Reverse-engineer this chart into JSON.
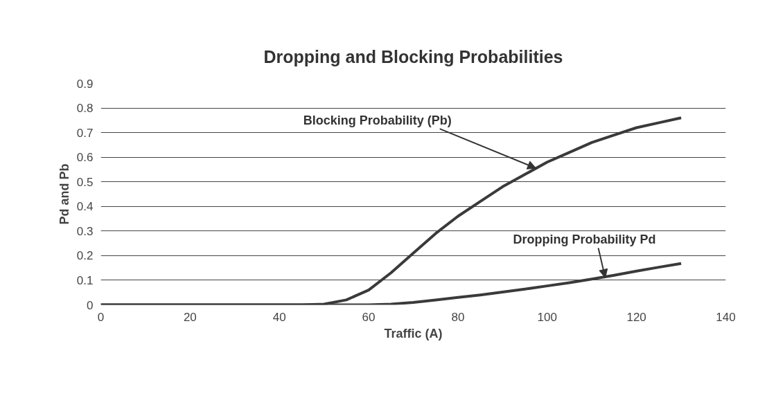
{
  "chart_data": {
    "type": "line",
    "title": "Dropping and Blocking Probabilities",
    "xlabel": "Traffic (A)",
    "ylabel": "Pd and Pb",
    "series": [
      {
        "name": null,
        "color": "#3a3a3a",
        "x": [
          0,
          45,
          50,
          55,
          60,
          65,
          70,
          75,
          80,
          85,
          90,
          95,
          100,
          105,
          110,
          115,
          120,
          125,
          130
        ],
        "values": [
          0,
          0,
          0.003,
          0.02,
          0.06,
          0.13,
          0.21,
          0.29,
          0.36,
          0.42,
          0.48,
          0.53,
          0.58,
          0.62,
          0.66,
          0.69,
          0.72,
          0.74,
          0.76
        ]
      },
      {
        "name": null,
        "color": "#3a3a3a",
        "x": [
          0,
          60,
          65,
          70,
          75,
          80,
          85,
          90,
          95,
          100,
          105,
          110,
          115,
          120,
          125,
          130
        ],
        "values": [
          0,
          0,
          0.003,
          0.01,
          0.02,
          0.03,
          0.04,
          0.052,
          0.064,
          0.077,
          0.09,
          0.105,
          0.12,
          0.137,
          0.153,
          0.168
        ]
      }
    ],
    "annotations": [
      {
        "text": "Blocking Probability (Pb)",
        "x": 97.5,
        "y": 0.555
      },
      {
        "text": "Dropping Probability Pd",
        "x": 113,
        "y": 0.11
      }
    ],
    "xlim": [
      0,
      140
    ],
    "xticks": [
      0,
      20,
      40,
      60,
      80,
      100,
      120,
      140
    ],
    "ylim": [
      0,
      0.9
    ],
    "yticks": [
      0,
      0.1,
      0.2,
      0.3,
      0.4,
      0.5,
      0.6,
      0.7,
      0.8,
      0.9
    ],
    "grid": "y",
    "marker": "none",
    "line_style": "solid"
  }
}
